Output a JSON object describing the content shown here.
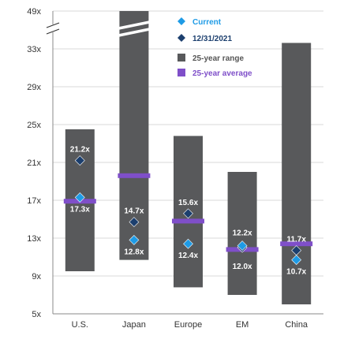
{
  "chart_data": {
    "type": "range",
    "categories": [
      "U.S.",
      "Japan",
      "Europe",
      "EM",
      "China"
    ],
    "y_ticks": [
      "5x",
      "9x",
      "13x",
      "17x",
      "21x",
      "25x",
      "29x",
      "33x",
      "49x"
    ],
    "ylim": [
      5,
      49
    ],
    "axis_break": "between 33x and 49x",
    "grid": true,
    "legend_placement": "top-right",
    "range_series": {
      "name": "25-year range",
      "low": [
        9.5,
        10.7,
        7.8,
        7.0,
        6.0
      ],
      "high": [
        24.5,
        49,
        23.8,
        20.0,
        35.8
      ]
    },
    "average_series": {
      "name": "25-year average",
      "values": [
        16.9,
        19.6,
        14.8,
        11.8,
        12.4
      ]
    },
    "current_series": {
      "name": "Current",
      "values": [
        17.3,
        12.8,
        12.4,
        12.2,
        10.7
      ],
      "labels": [
        "17.3x",
        "12.8x",
        "12.4x",
        "12.2x",
        "10.7x"
      ]
    },
    "prior_series": {
      "name": "12/31/2021",
      "values": [
        21.2,
        14.7,
        15.6,
        12.0,
        11.7
      ],
      "labels": [
        "21.2x",
        "14.7x",
        "15.6x",
        "12.0x",
        "11.7x"
      ]
    },
    "colors": {
      "range": "#58595b",
      "average": "#7f4fc9",
      "current": "#1e9be6",
      "prior": "#1c3f6e",
      "legend_text_current": "#1e9be6",
      "legend_text_prior": "#1c3f6e",
      "legend_text_range": "#555555",
      "legend_text_average": "#7f4fc9"
    }
  }
}
